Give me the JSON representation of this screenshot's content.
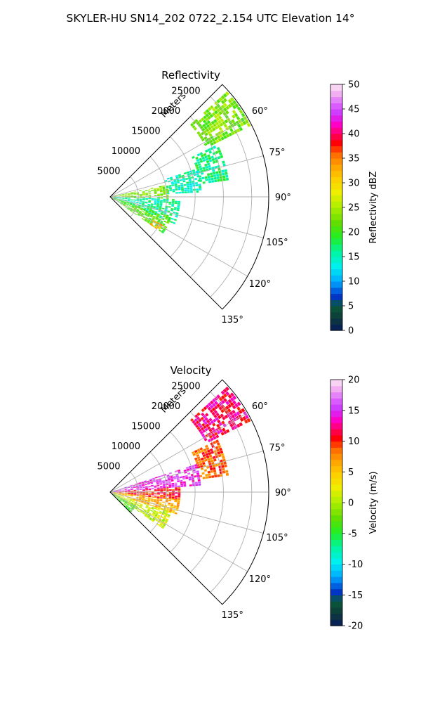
{
  "figure_title": "SKYLER-HU  SN14_202  0722_2.154 UTC Elevation 14°",
  "colors": {
    "grid": "#b0b0b0",
    "axis": "#000000",
    "background": "#ffffff"
  },
  "chart_data": [
    {
      "type": "heatmap",
      "subtype": "polar-sector (radar PPI)",
      "title": "Reflectivity",
      "range_label": "Meters",
      "range_ticks": [
        5000,
        10000,
        15000,
        20000,
        25000
      ],
      "r_max": 28000,
      "azimuth_range_deg": [
        45,
        135
      ],
      "azimuth_ticks": [
        "60°",
        "75°",
        "90°",
        "105°",
        "120°",
        "135°"
      ],
      "azimuth_tick_values": [
        60,
        75,
        90,
        105,
        120,
        135
      ],
      "colorbar": {
        "label": "Reflectivity dBZ",
        "min": 0,
        "max": 50,
        "ticks": [
          0,
          5,
          10,
          15,
          20,
          25,
          30,
          35,
          40,
          45,
          50
        ],
        "stops": [
          [
            0,
            "#061a5c"
          ],
          [
            0.05,
            "#0e3a3a"
          ],
          [
            0.1,
            "#0a5a3a"
          ],
          [
            0.14,
            "#0033cc"
          ],
          [
            0.2,
            "#00aaff"
          ],
          [
            0.26,
            "#00f0f0"
          ],
          [
            0.32,
            "#00f5a0"
          ],
          [
            0.38,
            "#22ee22"
          ],
          [
            0.44,
            "#66dd00"
          ],
          [
            0.5,
            "#aaee00"
          ],
          [
            0.56,
            "#eeee00"
          ],
          [
            0.62,
            "#ffcc00"
          ],
          [
            0.68,
            "#ff9900"
          ],
          [
            0.72,
            "#ff6600"
          ],
          [
            0.76,
            "#ff0000"
          ],
          [
            0.8,
            "#ff0066"
          ],
          [
            0.84,
            "#ff00cc"
          ],
          [
            0.88,
            "#cc33ff"
          ],
          [
            0.92,
            "#dd66ff"
          ],
          [
            0.96,
            "#f0aaf0"
          ],
          [
            1,
            "#fce6f6"
          ]
        ]
      },
      "echo_regions": [
        {
          "az": [
            48,
            62
          ],
          "r": [
            19000,
            27500
          ],
          "value": 23
        },
        {
          "az": [
            64,
            82
          ],
          "r": [
            16000,
            21000
          ],
          "value": 17
        },
        {
          "az": [
            72,
            87
          ],
          "r": [
            10000,
            16000
          ],
          "value": 15
        },
        {
          "az": [
            78,
            92
          ],
          "r": [
            0,
            10000
          ],
          "value": 23
        },
        {
          "az": [
            92,
            112
          ],
          "r": [
            0,
            12000
          ],
          "value": 16
        },
        {
          "az": [
            108,
            124
          ],
          "r": [
            0,
            11000
          ],
          "value": 21
        },
        {
          "az": [
            118,
            124
          ],
          "r": [
            8500,
            10500
          ],
          "value": 32
        }
      ]
    },
    {
      "type": "heatmap",
      "subtype": "polar-sector (radar PPI)",
      "title": "Velocity",
      "range_label": "Meters",
      "range_ticks": [
        5000,
        10000,
        15000,
        20000,
        25000
      ],
      "r_max": 28000,
      "azimuth_range_deg": [
        45,
        135
      ],
      "azimuth_ticks": [
        "60°",
        "75°",
        "90°",
        "105°",
        "120°",
        "135°"
      ],
      "azimuth_tick_values": [
        60,
        75,
        90,
        105,
        120,
        135
      ],
      "colorbar": {
        "label": "Velocity (m/s)",
        "min": -20,
        "max": 20,
        "ticks": [
          -20,
          -15,
          -10,
          -5,
          0,
          5,
          10,
          15,
          20
        ],
        "stops": [
          [
            0,
            "#061a5c"
          ],
          [
            0.05,
            "#0e3a3a"
          ],
          [
            0.1,
            "#0a5a3a"
          ],
          [
            0.14,
            "#0033cc"
          ],
          [
            0.2,
            "#00aaff"
          ],
          [
            0.26,
            "#00f0f0"
          ],
          [
            0.32,
            "#00f5a0"
          ],
          [
            0.38,
            "#22ee22"
          ],
          [
            0.44,
            "#66dd00"
          ],
          [
            0.5,
            "#aaee00"
          ],
          [
            0.56,
            "#eeee00"
          ],
          [
            0.62,
            "#ffcc00"
          ],
          [
            0.68,
            "#ff9900"
          ],
          [
            0.72,
            "#ff6600"
          ],
          [
            0.76,
            "#ff0000"
          ],
          [
            0.8,
            "#ff0066"
          ],
          [
            0.84,
            "#ff00cc"
          ],
          [
            0.88,
            "#cc33ff"
          ],
          [
            0.92,
            "#dd66ff"
          ],
          [
            0.96,
            "#f0aaf0"
          ],
          [
            1,
            "#fce6f6"
          ]
        ]
      },
      "echo_regions": [
        {
          "az": [
            48,
            62
          ],
          "r": [
            19000,
            27500
          ],
          "value": 12
        },
        {
          "az": [
            64,
            82
          ],
          "r": [
            16000,
            21000
          ],
          "value": 9
        },
        {
          "az": [
            72,
            86
          ],
          "r": [
            0,
            16000
          ],
          "value": 15
        },
        {
          "az": [
            86,
            96
          ],
          "r": [
            0,
            12000
          ],
          "value": 10
        },
        {
          "az": [
            96,
            108
          ],
          "r": [
            0,
            12000
          ],
          "value": 6
        },
        {
          "az": [
            108,
            124
          ],
          "r": [
            0,
            11000
          ],
          "value": 1
        },
        {
          "az": [
            118,
            135
          ],
          "r": [
            0,
            5000
          ],
          "value": -4
        }
      ]
    }
  ]
}
